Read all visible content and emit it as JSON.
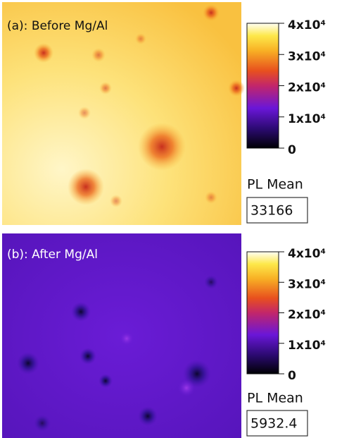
{
  "chart_data": [
    {
      "type": "heatmap",
      "title": "(a): Before Mg/Al",
      "colorbar_lim": [
        0,
        40000
      ],
      "colorbar_ticks": [
        {
          "value": 0,
          "label": "0"
        },
        {
          "value": 10000,
          "label": "1x10⁴"
        },
        {
          "value": 20000,
          "label": "2x10⁴"
        },
        {
          "value": 30000,
          "label": "3x10⁴"
        },
        {
          "value": 40000,
          "label": "4x10⁴"
        }
      ],
      "annotation": "PL Mean",
      "mean_value": 33166
    },
    {
      "type": "heatmap",
      "title": "(b): After Mg/Al",
      "colorbar_lim": [
        0,
        40000
      ],
      "colorbar_ticks": [
        {
          "value": 0,
          "label": "0"
        },
        {
          "value": 10000,
          "label": "1x10⁴"
        },
        {
          "value": 20000,
          "label": "2x10⁴"
        },
        {
          "value": 30000,
          "label": "3x10⁴"
        },
        {
          "value": 40000,
          "label": "4x10⁴"
        }
      ],
      "annotation": "PL Mean",
      "mean_value": 5932.4
    }
  ]
}
